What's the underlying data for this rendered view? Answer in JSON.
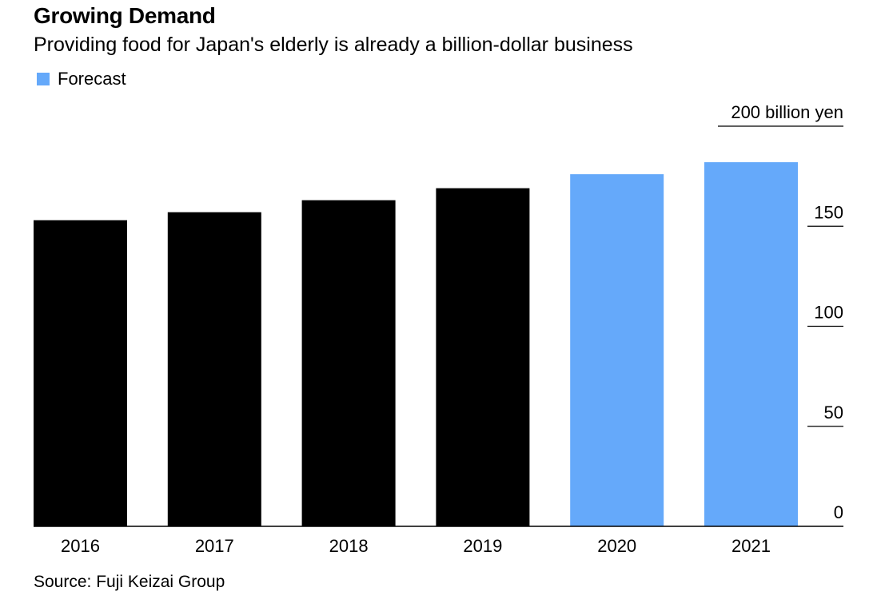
{
  "title": "Growing Demand",
  "subtitle": "Providing food for Japan's elderly is already a billion-dollar business",
  "legend": {
    "label": "Forecast",
    "color": "#65a9fa"
  },
  "source": "Source: Fuji Keizai Group",
  "colors": {
    "actual": "#000000",
    "forecast": "#65a9fa"
  },
  "chart_data": {
    "type": "bar",
    "categories": [
      "2016",
      "2017",
      "2018",
      "2019",
      "2020",
      "2021"
    ],
    "values": [
      153,
      157,
      163,
      169,
      176,
      182
    ],
    "forecast": [
      false,
      false,
      false,
      false,
      true,
      true
    ],
    "ylim": [
      0,
      200
    ],
    "yticks": [
      0,
      50,
      100,
      150,
      200
    ],
    "ytick_labels": [
      "0",
      "50",
      "100",
      "150",
      "200 billion yen"
    ],
    "ylabel": "",
    "xlabel": "",
    "title": "Growing Demand",
    "legend_position": "top-left"
  }
}
